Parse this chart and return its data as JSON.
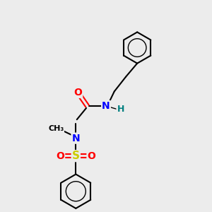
{
  "bg_color": "#ececec",
  "bond_color": "#000000",
  "atom_colors": {
    "O": "#ff0000",
    "N": "#0000ff",
    "S": "#cccc00",
    "H": "#008080",
    "C": "#000000"
  }
}
